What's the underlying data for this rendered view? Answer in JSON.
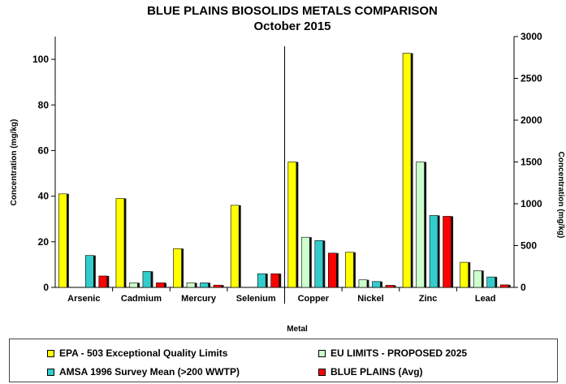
{
  "chart_data": {
    "type": "bar",
    "title": "BLUE PLAINS BIOSOLIDS METALS COMPARISON",
    "subtitle": "October  2015",
    "xlabel": "Metal",
    "ylabel_left": "Concentration (mg/kg)",
    "ylabel_right": "Concentration (mg/kg)",
    "categories": [
      "Arsenic",
      "Cadmium",
      "Mercury",
      "Selenium",
      "Copper",
      "Nickel",
      "Zinc",
      "Lead"
    ],
    "left_axis_categories": [
      "Arsenic",
      "Cadmium",
      "Mercury",
      "Selenium"
    ],
    "right_axis_categories": [
      "Copper",
      "Nickel",
      "Zinc",
      "Lead"
    ],
    "ylim_left": [
      0,
      110
    ],
    "yticks_left": [
      0,
      20,
      40,
      60,
      80,
      100
    ],
    "ylim_right": [
      0,
      3000
    ],
    "yticks_right": [
      0,
      500,
      1000,
      1500,
      2000,
      2500,
      3000
    ],
    "series": [
      {
        "name": "EPA - 503 Exceptional Quality Limits",
        "color": "#ffff00",
        "values": [
          41,
          39,
          17,
          36,
          1500,
          420,
          2800,
          300
        ]
      },
      {
        "name": "EU LIMITS - PROPOSED 2025",
        "color": "#ccffcc",
        "values": [
          null,
          2,
          2,
          null,
          600,
          90,
          1500,
          200
        ]
      },
      {
        "name": "AMSA 1996 Survey Mean (>200 WWTP)",
        "color": "#33cccc",
        "values": [
          14,
          7,
          2,
          6,
          560,
          70,
          860,
          125
        ]
      },
      {
        "name": "BLUE PLAINS (Avg)",
        "color": "#ff0000",
        "values": [
          5,
          2,
          1,
          6,
          410,
          25,
          850,
          30
        ]
      }
    ],
    "legend_position": "bottom",
    "grid": false
  }
}
